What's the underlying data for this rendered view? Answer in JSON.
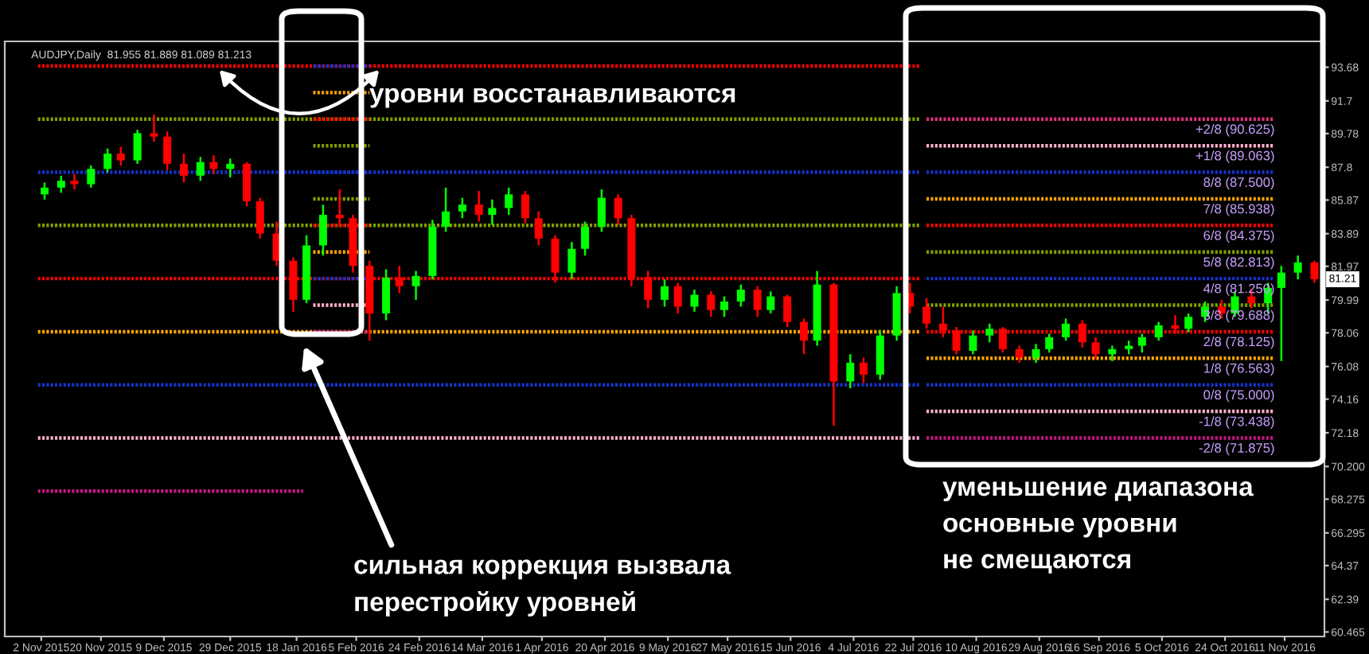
{
  "chart_data": {
    "type": "candlestick",
    "title": "AUDJPY,Daily  81.955 81.889 81.089 81.213",
    "x": [
      "2015-11-03",
      "2015-11-08",
      "2015-11-12",
      "2015-11-17",
      "2015-11-22",
      "2015-11-26",
      "2015-12-01",
      "2015-12-06",
      "2015-12-10",
      "2015-12-15",
      "2015-12-20",
      "2015-12-24",
      "2015-12-29",
      "2016-01-03",
      "2016-01-07",
      "2016-01-12",
      "2016-01-17",
      "2016-01-21",
      "2016-01-26",
      "2016-01-31",
      "2016-02-04",
      "2016-02-09",
      "2016-02-14",
      "2016-02-18",
      "2016-02-23",
      "2016-02-28",
      "2016-03-03",
      "2016-03-08",
      "2016-03-13",
      "2016-03-17",
      "2016-03-22",
      "2016-03-27",
      "2016-03-31",
      "2016-04-05",
      "2016-04-10",
      "2016-04-14",
      "2016-04-19",
      "2016-04-24",
      "2016-04-28",
      "2016-05-03",
      "2016-05-08",
      "2016-05-12",
      "2016-05-17",
      "2016-05-22",
      "2016-05-26",
      "2016-05-31",
      "2016-06-05",
      "2016-06-09",
      "2016-06-14",
      "2016-06-19",
      "2016-06-23",
      "2016-06-28",
      "2016-07-03",
      "2016-07-07",
      "2016-07-12",
      "2016-07-17",
      "2016-07-21",
      "2016-07-26",
      "2016-07-31",
      "2016-08-04",
      "2016-08-09",
      "2016-08-14",
      "2016-08-18",
      "2016-08-23",
      "2016-08-28",
      "2016-09-01",
      "2016-09-06",
      "2016-09-11",
      "2016-09-15",
      "2016-09-20",
      "2016-09-25",
      "2016-09-29",
      "2016-10-04",
      "2016-10-09",
      "2016-10-13",
      "2016-10-18",
      "2016-10-23",
      "2016-10-27",
      "2016-11-01",
      "2016-11-06",
      "2016-11-10",
      "2016-11-15",
      "2016-11-20"
    ],
    "ohlc": [
      [
        86.2,
        86.9,
        85.9,
        86.6
      ],
      [
        86.6,
        87.3,
        86.3,
        87.0
      ],
      [
        87.0,
        87.4,
        86.5,
        86.8
      ],
      [
        86.8,
        87.9,
        86.6,
        87.7
      ],
      [
        87.7,
        88.9,
        87.5,
        88.6
      ],
      [
        88.6,
        89.0,
        87.9,
        88.2
      ],
      [
        88.2,
        90.0,
        88.0,
        89.8
      ],
      [
        89.8,
        90.9,
        89.3,
        89.6
      ],
      [
        89.6,
        89.9,
        87.6,
        88.0
      ],
      [
        88.0,
        88.6,
        86.9,
        87.3
      ],
      [
        87.3,
        88.4,
        87.0,
        88.1
      ],
      [
        88.1,
        88.5,
        87.4,
        87.7
      ],
      [
        87.7,
        88.3,
        87.2,
        88.0
      ],
      [
        88.0,
        88.1,
        85.5,
        85.8
      ],
      [
        85.8,
        86.0,
        83.6,
        83.9
      ],
      [
        83.9,
        84.6,
        82.0,
        82.3
      ],
      [
        82.3,
        82.5,
        79.3,
        80.0
      ],
      [
        80.0,
        83.8,
        79.8,
        83.2
      ],
      [
        83.2,
        85.6,
        82.6,
        85.0
      ],
      [
        85.0,
        86.5,
        84.3,
        84.8
      ],
      [
        84.8,
        85.0,
        81.6,
        82.0
      ],
      [
        82.0,
        82.3,
        77.6,
        79.2
      ],
      [
        79.2,
        81.8,
        78.8,
        81.3
      ],
      [
        81.3,
        82.0,
        80.4,
        80.8
      ],
      [
        80.8,
        81.7,
        80.0,
        81.4
      ],
      [
        81.4,
        84.7,
        81.2,
        84.3
      ],
      [
        84.3,
        86.6,
        84.0,
        85.2
      ],
      [
        85.2,
        86.0,
        84.8,
        85.6
      ],
      [
        85.6,
        86.4,
        84.6,
        85.0
      ],
      [
        85.0,
        85.9,
        84.4,
        85.4
      ],
      [
        85.4,
        86.6,
        85.0,
        86.2
      ],
      [
        86.2,
        86.4,
        84.5,
        84.8
      ],
      [
        84.8,
        85.2,
        83.2,
        83.6
      ],
      [
        83.6,
        83.8,
        81.0,
        81.6
      ],
      [
        81.6,
        83.4,
        81.2,
        83.0
      ],
      [
        83.0,
        84.6,
        82.6,
        84.3
      ],
      [
        84.3,
        86.5,
        84.0,
        86.0
      ],
      [
        86.0,
        86.2,
        84.4,
        84.8
      ],
      [
        84.8,
        85.0,
        80.8,
        81.3
      ],
      [
        81.3,
        81.7,
        79.5,
        80.0
      ],
      [
        80.0,
        81.2,
        79.6,
        80.8
      ],
      [
        80.8,
        81.0,
        79.2,
        79.6
      ],
      [
        79.6,
        80.6,
        79.3,
        80.3
      ],
      [
        80.3,
        80.5,
        79.0,
        79.4
      ],
      [
        79.4,
        80.2,
        79.0,
        79.9
      ],
      [
        79.9,
        80.9,
        79.6,
        80.6
      ],
      [
        80.6,
        80.8,
        79.0,
        79.4
      ],
      [
        79.4,
        80.5,
        79.2,
        80.2
      ],
      [
        80.2,
        80.3,
        78.4,
        78.7
      ],
      [
        78.7,
        78.9,
        76.8,
        77.6
      ],
      [
        77.6,
        81.7,
        77.3,
        80.9
      ],
      [
        80.9,
        81.0,
        72.6,
        75.2
      ],
      [
        75.2,
        76.8,
        74.8,
        76.3
      ],
      [
        76.3,
        76.6,
        75.1,
        75.6
      ],
      [
        75.6,
        78.2,
        75.3,
        77.9
      ],
      [
        77.9,
        80.8,
        77.6,
        80.4
      ],
      [
        80.4,
        81.0,
        79.2,
        79.6
      ],
      [
        79.6,
        80.1,
        78.3,
        78.6
      ],
      [
        78.6,
        79.6,
        77.8,
        78.2
      ],
      [
        78.2,
        78.4,
        76.8,
        77.0
      ],
      [
        77.0,
        78.2,
        76.8,
        77.9
      ],
      [
        77.9,
        78.6,
        77.5,
        78.3
      ],
      [
        78.3,
        78.4,
        76.9,
        77.1
      ],
      [
        77.1,
        77.3,
        76.3,
        76.6
      ],
      [
        76.6,
        77.4,
        76.3,
        77.1
      ],
      [
        77.1,
        78.0,
        76.9,
        77.8
      ],
      [
        77.8,
        78.9,
        77.6,
        78.6
      ],
      [
        78.6,
        78.8,
        77.2,
        77.5
      ],
      [
        77.5,
        77.8,
        76.5,
        76.8
      ],
      [
        76.8,
        77.3,
        76.4,
        77.1
      ],
      [
        77.1,
        77.6,
        76.8,
        77.3
      ],
      [
        77.3,
        78.0,
        76.9,
        77.8
      ],
      [
        77.8,
        78.7,
        77.6,
        78.5
      ],
      [
        78.5,
        79.1,
        78.0,
        78.3
      ],
      [
        78.3,
        79.2,
        78.1,
        79.0
      ],
      [
        79.0,
        79.9,
        78.7,
        79.6
      ],
      [
        79.6,
        80.0,
        78.9,
        79.2
      ],
      [
        79.2,
        80.5,
        79.0,
        80.2
      ],
      [
        80.2,
        80.6,
        79.5,
        79.8
      ],
      [
        79.8,
        81.0,
        79.2,
        80.7
      ],
      [
        80.7,
        82.0,
        76.4,
        81.6
      ],
      [
        81.6,
        82.6,
        81.2,
        82.2
      ],
      [
        82.2,
        82.3,
        81.0,
        81.21
      ]
    ],
    "colors": [
      "#00ff00",
      "#00ff00",
      "#ff0000",
      "#00ff00",
      "#00ff00",
      "#ff0000",
      "#00ff00",
      "#ff0000",
      "#ff0000",
      "#ff0000",
      "#00ff00",
      "#ff0000",
      "#00ff00",
      "#ff0000",
      "#ff0000",
      "#ff0000",
      "#ff0000",
      "#00ff00",
      "#00ff00",
      "#ff0000",
      "#ff0000",
      "#ff0000",
      "#00ff00",
      "#ff0000",
      "#00ff00",
      "#00ff00",
      "#00ff00",
      "#00ff00",
      "#ff0000",
      "#00ff00",
      "#00ff00",
      "#ff0000",
      "#ff0000",
      "#ff0000",
      "#00ff00",
      "#00ff00",
      "#00ff00",
      "#ff0000",
      "#ff0000",
      "#ff0000",
      "#00ff00",
      "#ff0000",
      "#00ff00",
      "#ff0000",
      "#00ff00",
      "#00ff00",
      "#ff0000",
      "#00ff00",
      "#ff0000",
      "#ff0000",
      "#00ff00",
      "#ff0000",
      "#00ff00",
      "#ff0000",
      "#00ff00",
      "#00ff00",
      "#ff0000",
      "#ff0000",
      "#ff0000",
      "#ff0000",
      "#00ff00",
      "#00ff00",
      "#ff0000",
      "#ff0000",
      "#00ff00",
      "#00ff00",
      "#00ff00",
      "#ff0000",
      "#ff0000",
      "#00ff00",
      "#00ff00",
      "#00ff00",
      "#00ff00",
      "#ff0000",
      "#00ff00",
      "#00ff00",
      "#ff0000",
      "#00ff00",
      "#ff0000",
      "#00ff00",
      "#00ff00",
      "#00ff00",
      "#ff0000"
    ],
    "series": [
      {
        "type": "line",
        "color": "#ff0000",
        "x": [
          "2015-11-01",
          "2016-07-24"
        ],
        "values": [
          93.75,
          93.75
        ]
      },
      {
        "type": "line",
        "color": "#80a000",
        "x": [
          "2015-11-01",
          "2016-07-24"
        ],
        "values": [
          90.625,
          90.625
        ]
      },
      {
        "type": "line",
        "color": "#1432c8",
        "x": [
          "2015-11-01",
          "2016-07-24"
        ],
        "values": [
          87.5,
          87.5
        ]
      },
      {
        "type": "line",
        "color": "#80a000",
        "x": [
          "2015-11-01",
          "2016-07-24"
        ],
        "values": [
          84.375,
          84.375
        ]
      },
      {
        "type": "line",
        "color": "#ff0000",
        "x": [
          "2015-11-01",
          "2016-07-24"
        ],
        "values": [
          81.25,
          81.25
        ]
      },
      {
        "type": "line",
        "color": "#ffa500",
        "x": [
          "2015-11-01",
          "2016-07-24"
        ],
        "values": [
          78.125,
          78.125
        ]
      },
      {
        "type": "line",
        "color": "#1432c8",
        "x": [
          "2015-11-01",
          "2016-07-24"
        ],
        "values": [
          75.0,
          75.0
        ]
      },
      {
        "type": "line",
        "color": "#ffb0d0",
        "x": [
          "2015-11-01",
          "2016-07-24"
        ],
        "values": [
          71.875,
          71.875
        ]
      },
      {
        "type": "line",
        "color": "#c71585",
        "x": [
          "2015-11-01",
          "2016-01-20"
        ],
        "values": [
          68.75,
          68.75
        ]
      },
      {
        "type": "line",
        "color": "#1432c8",
        "x": [
          "2016-01-23",
          "2016-02-09"
        ],
        "values": [
          93.75,
          93.75
        ]
      },
      {
        "type": "line",
        "color": "#ffa500",
        "x": [
          "2016-01-23",
          "2016-02-09"
        ],
        "values": [
          92.1875,
          92.1875
        ]
      },
      {
        "type": "line",
        "color": "#ff0000",
        "x": [
          "2016-01-23",
          "2016-02-09"
        ],
        "values": [
          90.625,
          90.625
        ]
      },
      {
        "type": "line",
        "color": "#80a000",
        "x": [
          "2016-01-23",
          "2016-02-09"
        ],
        "values": [
          89.0625,
          89.0625
        ]
      },
      {
        "type": "line",
        "color": "#1432c8",
        "x": [
          "2016-01-23",
          "2016-02-09"
        ],
        "values": [
          87.5,
          87.5
        ]
      },
      {
        "type": "line",
        "color": "#80a000",
        "x": [
          "2016-01-23",
          "2016-02-09"
        ],
        "values": [
          85.9375,
          85.9375
        ]
      },
      {
        "type": "line",
        "color": "#ff0000",
        "x": [
          "2016-01-23",
          "2016-02-09"
        ],
        "values": [
          84.375,
          84.375
        ]
      },
      {
        "type": "line",
        "color": "#ffa500",
        "x": [
          "2016-01-23",
          "2016-02-09"
        ],
        "values": [
          82.8125,
          82.8125
        ]
      },
      {
        "type": "line",
        "color": "#1432c8",
        "x": [
          "2016-01-23",
          "2016-02-09"
        ],
        "values": [
          81.25,
          81.25
        ]
      },
      {
        "type": "line",
        "color": "#ffb0d0",
        "x": [
          "2016-01-23",
          "2016-02-09"
        ],
        "values": [
          79.6875,
          79.6875
        ]
      },
      {
        "type": "line",
        "color": "#c71585",
        "x": [
          "2016-01-23",
          "2016-02-09"
        ],
        "values": [
          78.125,
          78.125
        ]
      },
      {
        "type": "line",
        "color": "#e0307a",
        "x": [
          "2016-07-26",
          "2016-11-08"
        ],
        "values": [
          90.625,
          90.625
        ]
      },
      {
        "type": "line",
        "color": "#ffb0d0",
        "x": [
          "2016-07-26",
          "2016-11-08"
        ],
        "values": [
          89.063,
          89.063
        ]
      },
      {
        "type": "line",
        "color": "#1432c8",
        "x": [
          "2016-07-26",
          "2016-11-08"
        ],
        "values": [
          87.5,
          87.5
        ]
      },
      {
        "type": "line",
        "color": "#ffa500",
        "x": [
          "2016-07-26",
          "2016-11-08"
        ],
        "values": [
          85.938,
          85.938
        ]
      },
      {
        "type": "line",
        "color": "#ff0000",
        "x": [
          "2016-07-26",
          "2016-11-08"
        ],
        "values": [
          84.375,
          84.375
        ]
      },
      {
        "type": "line",
        "color": "#80a000",
        "x": [
          "2016-07-26",
          "2016-11-08"
        ],
        "values": [
          82.813,
          82.813
        ]
      },
      {
        "type": "line",
        "color": "#1432c8",
        "x": [
          "2016-07-26",
          "2016-11-08"
        ],
        "values": [
          81.25,
          81.25
        ]
      },
      {
        "type": "line",
        "color": "#80a000",
        "x": [
          "2016-07-26",
          "2016-11-08"
        ],
        "values": [
          79.688,
          79.688
        ]
      },
      {
        "type": "line",
        "color": "#ff0000",
        "x": [
          "2016-07-26",
          "2016-11-08"
        ],
        "values": [
          78.125,
          78.125
        ]
      },
      {
        "type": "line",
        "color": "#ffa500",
        "x": [
          "2016-07-26",
          "2016-11-08"
        ],
        "values": [
          76.563,
          76.563
        ]
      },
      {
        "type": "line",
        "color": "#1432c8",
        "x": [
          "2016-07-26",
          "2016-11-08"
        ],
        "values": [
          75.0,
          75.0
        ]
      },
      {
        "type": "line",
        "color": "#ffb0d0",
        "x": [
          "2016-07-26",
          "2016-11-08"
        ],
        "values": [
          73.438,
          73.438
        ]
      },
      {
        "type": "line",
        "color": "#c71585",
        "x": [
          "2016-07-26",
          "2016-11-08"
        ],
        "values": [
          71.875,
          71.875
        ]
      }
    ],
    "line_style": "dotted",
    "annotations": [
      {
        "text": "+2/8 (90.625)",
        "x": "2016-11-08",
        "y": 90.625
      },
      {
        "text": "+1/8 (89.063)",
        "x": "2016-11-08",
        "y": 89.063
      },
      {
        "text": "8/8 (87.500)",
        "x": "2016-11-08",
        "y": 87.5
      },
      {
        "text": "7/8 (85.938)",
        "x": "2016-11-08",
        "y": 85.938
      },
      {
        "text": "6/8 (84.375)",
        "x": "2016-11-08",
        "y": 84.375
      },
      {
        "text": "5/8 (82.813)",
        "x": "2016-11-08",
        "y": 82.813
      },
      {
        "text": "4/8 (81.250)",
        "x": "2016-11-08",
        "y": 81.25
      },
      {
        "text": "3/8 (79.688)",
        "x": "2016-11-08",
        "y": 79.688
      },
      {
        "text": "2/8 (78.125)",
        "x": "2016-11-08",
        "y": 78.125
      },
      {
        "text": "1/8 (76.563)",
        "x": "2016-11-08",
        "y": 76.563
      },
      {
        "text": "0/8 (75.000)",
        "x": "2016-11-08",
        "y": 75.0
      },
      {
        "text": "-1/8 (73.438)",
        "x": "2016-11-08",
        "y": 73.438
      },
      {
        "text": "-2/8 (71.875)",
        "x": "2016-11-08",
        "y": 71.875
      },
      {
        "text": "81.21",
        "x": "2016-11-20",
        "y": 81.21
      },
      "уровни восстанавливаются",
      "сильная коррекция вызвала\nперестройку уровней",
      "уменьшение диапазона\nосновные уровни\nне смещаются"
    ],
    "xlim": [
      "2015-10-22",
      "2016-11-23"
    ],
    "xticks": [
      {
        "value": "2015-11-02",
        "label": "2 Nov 2015"
      },
      {
        "value": "2015-11-20",
        "label": "20 Nov 2015"
      },
      {
        "value": "2015-12-09",
        "label": "9 Dec 2015"
      },
      {
        "value": "2015-12-29",
        "label": "29 Dec 2015"
      },
      {
        "value": "2016-01-18",
        "label": "18 Jan 2016"
      },
      {
        "value": "2016-02-05",
        "label": "5 Feb 2016"
      },
      {
        "value": "2016-02-24",
        "label": "24 Feb 2016"
      },
      {
        "value": "2016-03-14",
        "label": "14 Mar 2016"
      },
      {
        "value": "2016-04-01",
        "label": "1 Apr 2016"
      },
      {
        "value": "2016-04-20",
        "label": "20 Apr 2016"
      },
      {
        "value": "2016-05-09",
        "label": "9 May 2016"
      },
      {
        "value": "2016-05-27",
        "label": "27 May 2016"
      },
      {
        "value": "2016-06-15",
        "label": "15 Jun 2016"
      },
      {
        "value": "2016-07-04",
        "label": "4 Jul 2016"
      },
      {
        "value": "2016-07-22",
        "label": "22 Jul 2016"
      },
      {
        "value": "2016-08-10",
        "label": "10 Aug 2016"
      },
      {
        "value": "2016-08-29",
        "label": "29 Aug 2016"
      },
      {
        "value": "2016-09-16",
        "label": "16 Sep 2016"
      },
      {
        "value": "2016-10-05",
        "label": "5 Oct 2016"
      },
      {
        "value": "2016-10-24",
        "label": "24 Oct 2016"
      },
      {
        "value": "2016-11-11",
        "label": "11 Nov 2016"
      }
    ],
    "ylim": [
      60.2,
      95.2
    ],
    "yticks": [
      93.68,
      91.7,
      89.78,
      87.8,
      85.87,
      83.89,
      81.97,
      79.99,
      78.06,
      76.08,
      74.16,
      72.18,
      {
        "value": 70.2,
        "label": "70.200"
      },
      68.275,
      66.295,
      64.37,
      62.39,
      60.465
    ]
  }
}
